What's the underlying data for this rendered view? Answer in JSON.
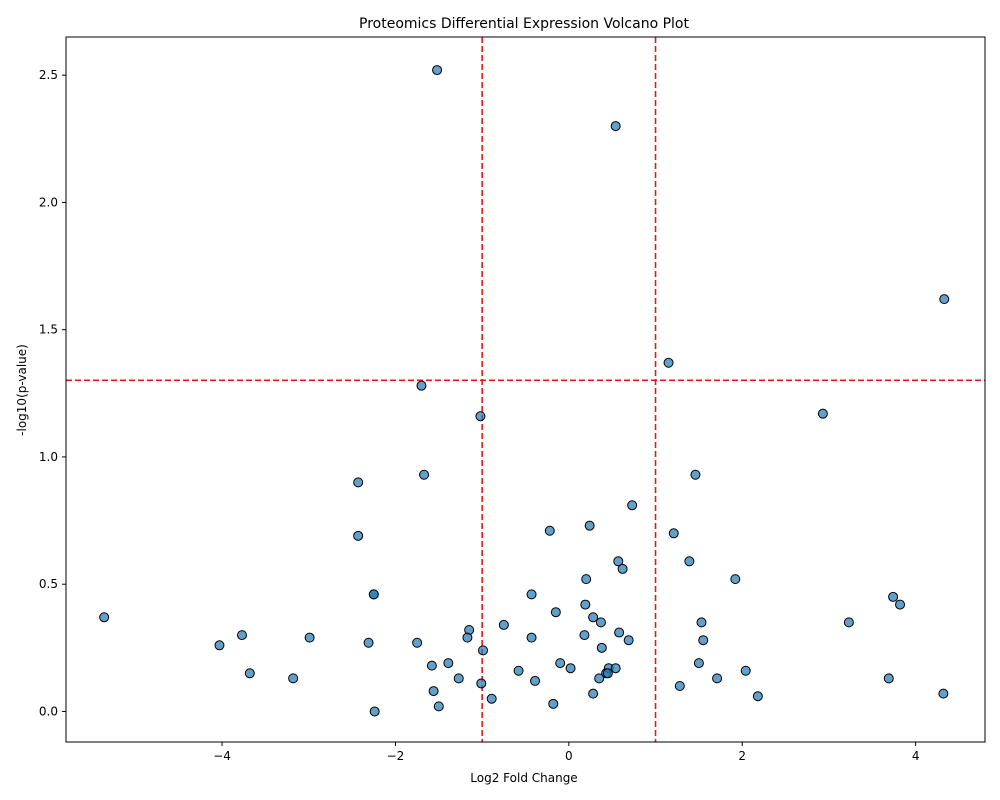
{
  "chart_data": {
    "type": "scatter",
    "title": "Proteomics Differential Expression Volcano Plot",
    "xlabel": "Log2 Fold Change",
    "ylabel": "-log10(p-value)",
    "xlim": [
      -5.8,
      4.8
    ],
    "ylim": [
      -0.12,
      2.65
    ],
    "xticks": [
      -4,
      -2,
      0,
      2,
      4
    ],
    "yticks": [
      0.0,
      0.5,
      1.0,
      1.5,
      2.0,
      2.5
    ],
    "xtick_labels": [
      "−4",
      "−2",
      "0",
      "2",
      "4"
    ],
    "ytick_labels": [
      "0.0",
      "0.5",
      "1.0",
      "1.5",
      "2.0",
      "2.5"
    ],
    "thresholds": {
      "fold_change": [
        -1,
        1
      ],
      "neg_log10_p": 1.301,
      "color": "#e31a1c"
    },
    "point_color": "#1f77b4",
    "point_edge_color": "#000000",
    "grid": false,
    "legend": "none",
    "points": [
      {
        "x": -1.52,
        "y": 2.52
      },
      {
        "x": 0.54,
        "y": 2.3
      },
      {
        "x": 4.33,
        "y": 1.62
      },
      {
        "x": 1.15,
        "y": 1.37
      },
      {
        "x": -1.7,
        "y": 1.28
      },
      {
        "x": 2.93,
        "y": 1.17
      },
      {
        "x": -1.02,
        "y": 1.16
      },
      {
        "x": -1.67,
        "y": 0.93
      },
      {
        "x": 1.46,
        "y": 0.93
      },
      {
        "x": -2.43,
        "y": 0.9
      },
      {
        "x": 0.73,
        "y": 0.81
      },
      {
        "x": 0.24,
        "y": 0.73
      },
      {
        "x": -0.22,
        "y": 0.71
      },
      {
        "x": 1.21,
        "y": 0.7
      },
      {
        "x": -2.43,
        "y": 0.69
      },
      {
        "x": 1.39,
        "y": 0.59
      },
      {
        "x": 0.57,
        "y": 0.59
      },
      {
        "x": 0.62,
        "y": 0.56
      },
      {
        "x": 1.92,
        "y": 0.52
      },
      {
        "x": 0.2,
        "y": 0.52
      },
      {
        "x": -2.25,
        "y": 0.46
      },
      {
        "x": -2.25,
        "y": 0.46
      },
      {
        "x": -0.43,
        "y": 0.46
      },
      {
        "x": 3.74,
        "y": 0.45
      },
      {
        "x": 3.82,
        "y": 0.42
      },
      {
        "x": 0.19,
        "y": 0.42
      },
      {
        "x": -0.15,
        "y": 0.39
      },
      {
        "x": -5.36,
        "y": 0.37
      },
      {
        "x": 0.28,
        "y": 0.37
      },
      {
        "x": 0.37,
        "y": 0.35
      },
      {
        "x": 1.53,
        "y": 0.35
      },
      {
        "x": 3.23,
        "y": 0.35
      },
      {
        "x": -0.75,
        "y": 0.34
      },
      {
        "x": -1.15,
        "y": 0.32
      },
      {
        "x": 0.58,
        "y": 0.31
      },
      {
        "x": -3.77,
        "y": 0.3
      },
      {
        "x": 0.18,
        "y": 0.3
      },
      {
        "x": -1.17,
        "y": 0.29
      },
      {
        "x": -2.99,
        "y": 0.29
      },
      {
        "x": -0.43,
        "y": 0.29
      },
      {
        "x": 0.69,
        "y": 0.28
      },
      {
        "x": 1.55,
        "y": 0.28
      },
      {
        "x": -2.31,
        "y": 0.27
      },
      {
        "x": -1.75,
        "y": 0.27
      },
      {
        "x": -4.03,
        "y": 0.26
      },
      {
        "x": 0.38,
        "y": 0.25
      },
      {
        "x": -0.99,
        "y": 0.24
      },
      {
        "x": -1.39,
        "y": 0.19
      },
      {
        "x": -0.1,
        "y": 0.19
      },
      {
        "x": 1.5,
        "y": 0.19
      },
      {
        "x": -1.58,
        "y": 0.18
      },
      {
        "x": 0.02,
        "y": 0.17
      },
      {
        "x": 0.46,
        "y": 0.17
      },
      {
        "x": 0.54,
        "y": 0.17
      },
      {
        "x": -0.58,
        "y": 0.16
      },
      {
        "x": 2.04,
        "y": 0.16
      },
      {
        "x": -3.68,
        "y": 0.15
      },
      {
        "x": 0.43,
        "y": 0.15
      },
      {
        "x": 0.45,
        "y": 0.15
      },
      {
        "x": -3.18,
        "y": 0.13
      },
      {
        "x": -1.27,
        "y": 0.13
      },
      {
        "x": 1.71,
        "y": 0.13
      },
      {
        "x": 3.69,
        "y": 0.13
      },
      {
        "x": 0.35,
        "y": 0.13
      },
      {
        "x": -0.39,
        "y": 0.12
      },
      {
        "x": -1.01,
        "y": 0.11
      },
      {
        "x": 1.28,
        "y": 0.1
      },
      {
        "x": -1.56,
        "y": 0.08
      },
      {
        "x": 4.32,
        "y": 0.07
      },
      {
        "x": 0.28,
        "y": 0.07
      },
      {
        "x": 2.18,
        "y": 0.06
      },
      {
        "x": -0.89,
        "y": 0.05
      },
      {
        "x": -0.18,
        "y": 0.03
      },
      {
        "x": -1.5,
        "y": 0.02
      },
      {
        "x": -2.24,
        "y": 0.0
      }
    ]
  }
}
